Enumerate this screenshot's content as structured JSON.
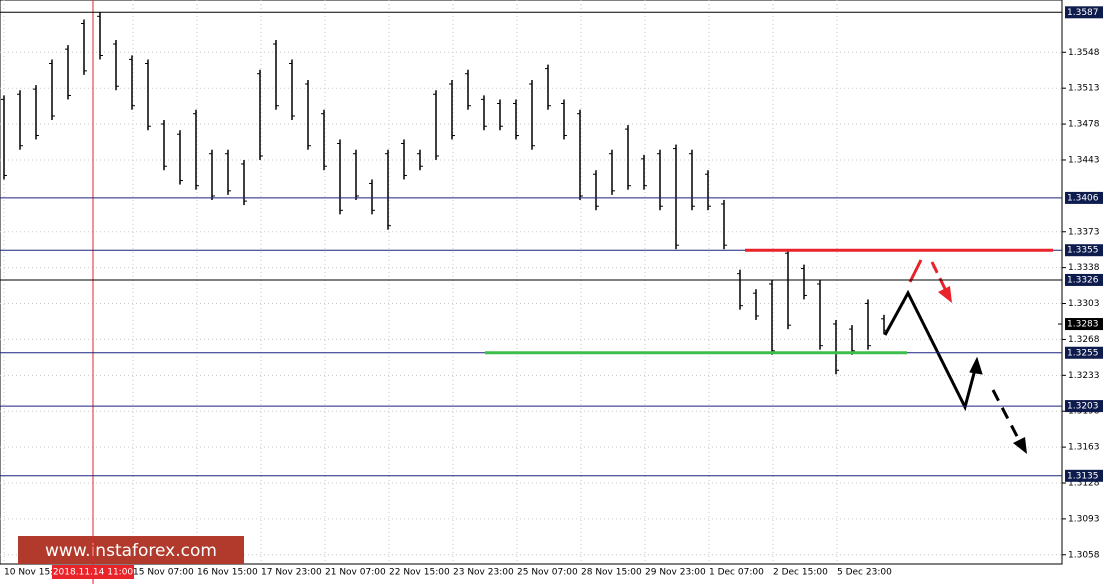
{
  "chart_data": {
    "type": "ohlc",
    "ylim": [
      1.3049,
      1.3599
    ],
    "yticks": [
      1.3548,
      1.3513,
      1.3478,
      1.3443,
      1.3373,
      1.3338,
      1.3303,
      1.3268,
      1.3233,
      1.3198,
      1.3163,
      1.3128,
      1.3093,
      1.3058
    ],
    "x_labels": [
      "10 Nov 15:00",
      "15 Nov 07:00",
      "16 Nov 15:00",
      "17 Nov 23:00",
      "21 Nov 07:00",
      "22 Nov 15:00",
      "23 Nov 23:00",
      "25 Nov 07:00",
      "28 Nov 15:00",
      "29 Nov 23:00",
      "1 Dec 07:00",
      "2 Dec 15:00",
      "5 Dec 23:00"
    ],
    "marker_label": "2018.11.14 11:00",
    "levels": [
      1.3587,
      1.3406,
      1.3355,
      1.3326,
      1.3255,
      1.3203,
      1.3135
    ],
    "resistance": 1.3355,
    "support": 1.3255,
    "current_price": 1.3283,
    "high": [
      1.3506,
      1.3511,
      1.3516,
      1.3541,
      1.3555,
      1.358,
      1.3587,
      1.356,
      1.3545,
      1.3541,
      1.3482,
      1.3472,
      1.3492,
      1.3453,
      1.3453,
      1.3443,
      1.3531,
      1.356,
      1.3541,
      1.3521,
      1.3492,
      1.3463,
      1.3453,
      1.3424,
      1.3453,
      1.3463,
      1.3453,
      1.3511,
      1.3521,
      1.3531,
      1.3506,
      1.3502,
      1.3502,
      1.3521,
      1.3536,
      1.3502,
      1.3492,
      1.3433,
      1.3453,
      1.3477,
      1.3448,
      1.3453,
      1.3458,
      1.3453,
      1.3433,
      1.3404,
      1.3336,
      1.3317,
      1.3326,
      1.3356,
      1.3341,
      1.3326,
      1.3287,
      1.3282,
      1.3307,
      1.3292
    ],
    "low": [
      1.3424,
      1.3453,
      1.3463,
      1.3482,
      1.3502,
      1.3526,
      1.3541,
      1.3511,
      1.3492,
      1.3472,
      1.3433,
      1.3419,
      1.3414,
      1.3404,
      1.3409,
      1.3399,
      1.3443,
      1.3492,
      1.3482,
      1.3453,
      1.3433,
      1.339,
      1.3404,
      1.339,
      1.3375,
      1.3424,
      1.3433,
      1.3443,
      1.3463,
      1.3492,
      1.3472,
      1.3472,
      1.3463,
      1.3453,
      1.3492,
      1.3463,
      1.3404,
      1.3394,
      1.3409,
      1.3414,
      1.3414,
      1.3394,
      1.3356,
      1.3394,
      1.3394,
      1.3356,
      1.3297,
      1.3287,
      1.3253,
      1.3278,
      1.3307,
      1.3258,
      1.3234,
      1.3253,
      1.3258,
      1.3273
    ],
    "watermark": "www.instaforex.com"
  }
}
